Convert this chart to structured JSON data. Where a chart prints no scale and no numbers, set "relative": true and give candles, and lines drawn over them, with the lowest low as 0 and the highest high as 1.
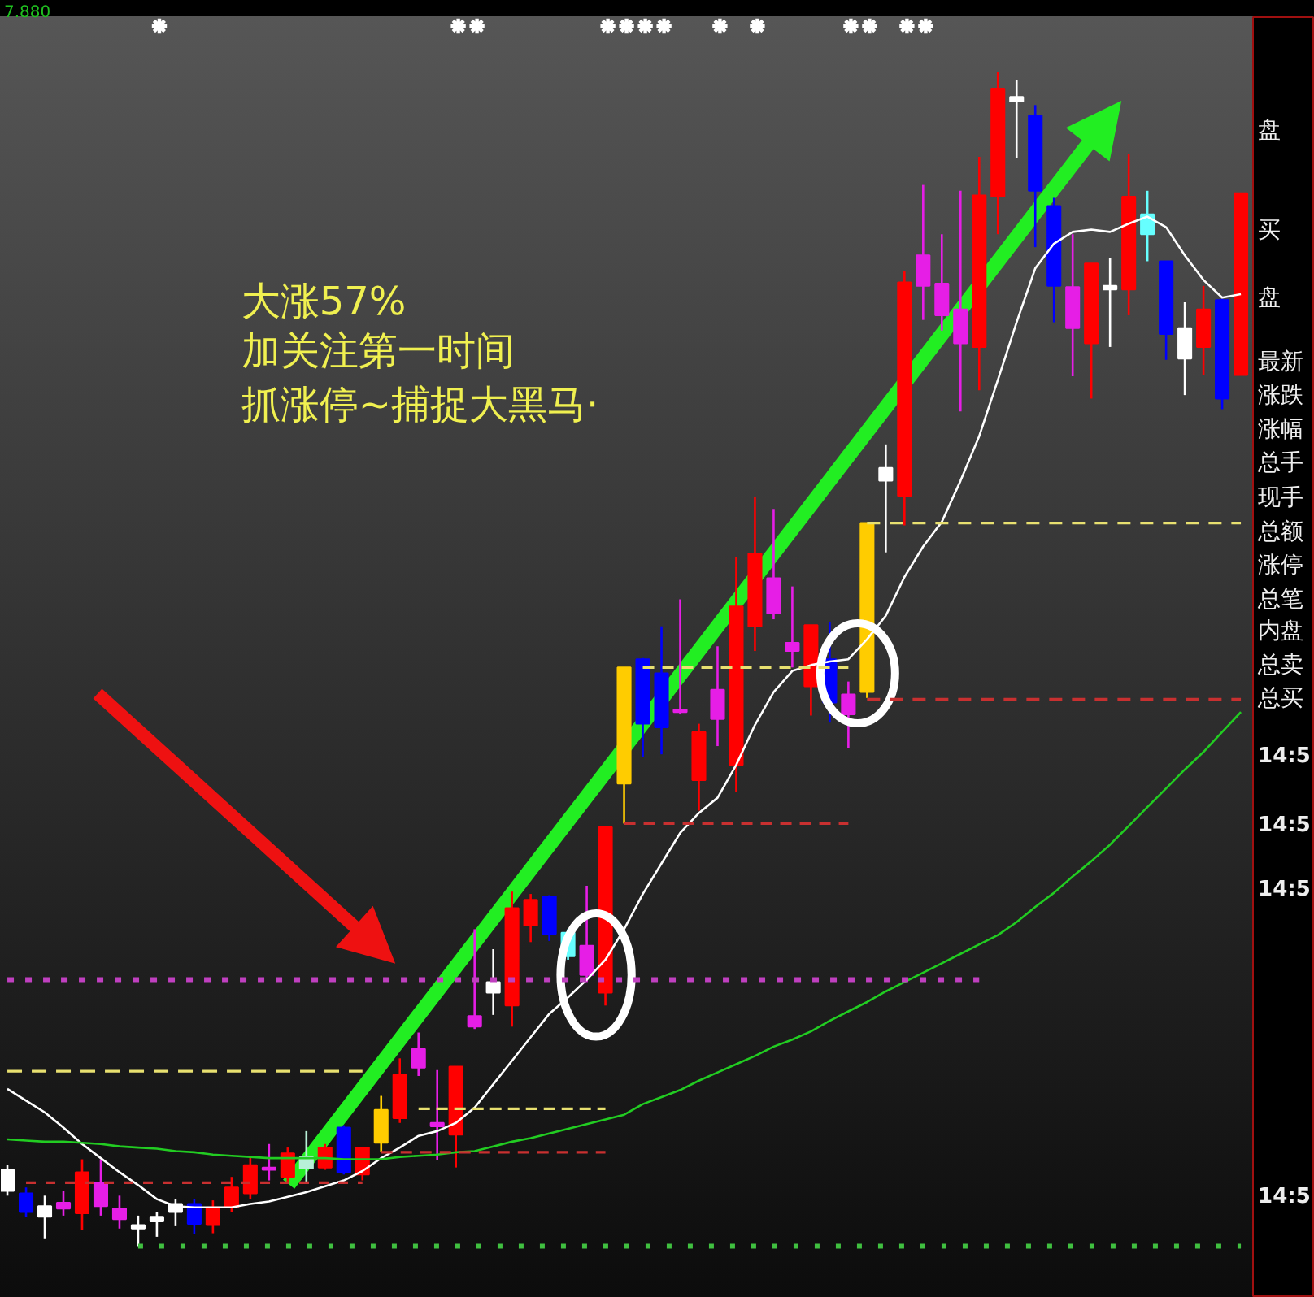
{
  "chart_data": {
    "type": "candlestick",
    "relative": true,
    "tick_labels": false,
    "categories": [
      null,
      null,
      null,
      null,
      null,
      null,
      null,
      null,
      null,
      null,
      null,
      null,
      null,
      null,
      null,
      null,
      null,
      null,
      null,
      null,
      null,
      null,
      null,
      null,
      null,
      null,
      null,
      null,
      null,
      null,
      null,
      null,
      null,
      null,
      null,
      null,
      null,
      null,
      null,
      null,
      null,
      null,
      null,
      null,
      null,
      null,
      null,
      null,
      null,
      null,
      null,
      null,
      null,
      null,
      null,
      null,
      null,
      null,
      null,
      null,
      null,
      null,
      null,
      null,
      null,
      null,
      null
    ],
    "ohlc": [
      [
        0.047,
        0.069,
        0.043,
        0.065
      ],
      [
        0.045,
        0.05,
        0.025,
        0.029
      ],
      [
        0.025,
        0.043,
        0.006,
        0.034
      ],
      [
        0.037,
        0.047,
        0.026,
        0.032
      ],
      [
        0.028,
        0.074,
        0.014,
        0.063
      ],
      [
        0.054,
        0.074,
        0.026,
        0.034
      ],
      [
        0.032,
        0.043,
        0.015,
        0.023
      ],
      [
        0.015,
        0.026,
        0,
        0.018
      ],
      [
        0.021,
        0.029,
        0.008,
        0.025
      ],
      [
        0.029,
        0.04,
        0.017,
        0.036
      ],
      [
        0.036,
        0.04,
        0.01,
        0.019
      ],
      [
        0.018,
        0.039,
        0.011,
        0.033
      ],
      [
        0.033,
        0.059,
        0.029,
        0.05
      ],
      [
        0.045,
        0.076,
        0.04,
        0.069
      ],
      [
        0.067,
        0.087,
        0.056,
        0.065
      ],
      [
        0.059,
        0.084,
        0.055,
        0.079
      ],
      [
        0.066,
        0.098,
        0.054,
        0.076
      ],
      [
        0.067,
        0.087,
        0.065,
        0.084
      ],
      [
        0.101,
        0.103,
        0.061,
        0.063
      ],
      [
        0.061,
        0.084,
        0.056,
        0.084
      ],
      [
        0.088,
        0.128,
        0.08,
        0.116
      ],
      [
        0.109,
        0.16,
        0.105,
        0.146
      ],
      [
        0.168,
        0.182,
        0.145,
        0.152
      ],
      [
        0.105,
        0.15,
        0.073,
        0.102
      ],
      [
        0.095,
        0.153,
        0.067,
        0.153
      ],
      [
        0.196,
        0.27,
        0.185,
        0.187
      ],
      [
        0.216,
        0.253,
        0.197,
        0.225
      ],
      [
        0.205,
        0.302,
        0.187,
        0.288
      ],
      [
        0.273,
        0.3,
        0.259,
        0.295
      ],
      [
        0.298,
        0.299,
        0.26,
        0.266
      ],
      [
        0.267,
        0.27,
        0.244,
        0.247
      ],
      [
        0.256,
        0.307,
        0.225,
        0.231
      ],
      [
        0.216,
        0.357,
        0.205,
        0.357
      ],
      [
        0.394,
        0.493,
        0.36,
        0.493
      ],
      [
        0.5,
        0.501,
        0.417,
        0.445
      ],
      [
        0.488,
        0.528,
        0.419,
        0.442
      ],
      [
        0.457,
        0.551,
        0.453,
        0.455
      ],
      [
        0.397,
        0.445,
        0.371,
        0.438
      ],
      [
        0.474,
        0.511,
        0.426,
        0.449
      ],
      [
        0.41,
        0.587,
        0.387,
        0.545
      ],
      [
        0.528,
        0.638,
        0.507,
        0.59
      ],
      [
        0.569,
        0.628,
        0.534,
        0.539
      ],
      [
        0.514,
        0.562,
        0.493,
        0.507
      ],
      [
        0.477,
        0.529,
        0.452,
        0.529
      ],
      [
        0.5,
        0.532,
        0.446,
        0.463
      ],
      [
        0.47,
        0.481,
        0.424,
        0.453
      ],
      [
        0.472,
        0.616,
        0.467,
        0.616
      ],
      [
        0.652,
        0.683,
        0.591,
        0.663
      ],
      [
        0.639,
        0.831,
        0.614,
        0.821
      ],
      [
        0.844,
        0.904,
        0.789,
        0.818
      ],
      [
        0.82,
        0.862,
        0.78,
        0.793
      ],
      [
        0.798,
        0.899,
        0.711,
        0.769
      ],
      [
        0.766,
        0.928,
        0.729,
        0.895
      ],
      [
        0.894,
        1,
        0.862,
        0.986
      ],
      [
        0.975,
        0.993,
        0.927,
        0.979
      ],
      [
        0.963,
        0.972,
        0.851,
        0.899
      ],
      [
        0.886,
        0.893,
        0.787,
        0.818
      ],
      [
        0.817,
        0.862,
        0.741,
        0.782
      ],
      [
        0.769,
        0.837,
        0.722,
        0.837
      ],
      [
        0.815,
        0.842,
        0.766,
        0.818
      ],
      [
        0.815,
        0.93,
        0.793,
        0.894
      ],
      [
        0.879,
        0.899,
        0.839,
        0.862
      ],
      [
        0.839,
        0.839,
        0.755,
        0.777
      ],
      [
        0.756,
        0.804,
        0.725,
        0.782
      ],
      [
        0.766,
        0.818,
        0.742,
        0.798
      ],
      [
        0.806,
        0.807,
        0.713,
        0.722
      ],
      [
        0.742,
        0.897,
        0.742,
        0.897
      ]
    ],
    "colors": [
      "#ffffff",
      "#0000ff",
      "#ffffff",
      "#e61ee6",
      "#ff0000",
      "#e61ee6",
      "#e61ee6",
      "#ffffff",
      "#ffffff",
      "#ffffff",
      "#0000ff",
      "#ff0000",
      "#ff0000",
      "#ff0000",
      "#e61ee6",
      "#ff0000",
      "#b8f0d8",
      "#ff0000",
      "#0000ff",
      "#ff0000",
      "#ffcc00",
      "#ff0000",
      "#e61ee6",
      "#e61ee6",
      "#ff0000",
      "#e61ee6",
      "#ffffff",
      "#ff0000",
      "#ff0000",
      "#0000ff",
      "#66ffff",
      "#e61ee6",
      "#ff0000",
      "#ffcc00",
      "#0000ff",
      "#0000ff",
      "#e61ee6",
      "#ff0000",
      "#e61ee6",
      "#ff0000",
      "#ff0000",
      "#e61ee6",
      "#e61ee6",
      "#ff0000",
      "#0000ff",
      "#e61ee6",
      "#ffcc00",
      "#ffffff",
      "#ff0000",
      "#e61ee6",
      "#e61ee6",
      "#e61ee6",
      "#ff0000",
      "#ff0000",
      "#ffffff",
      "#0000ff",
      "#0000ff",
      "#e61ee6",
      "#ff0000",
      "#ffffff",
      "#ff0000",
      "#66ffff",
      "#0000ff",
      "#ffffff",
      "#ff0000",
      "#0000ff",
      "#ff0000"
    ],
    "series": [
      {
        "type": "line",
        "color": "#ffffff",
        "values": [
          0.134,
          0.124,
          0.114,
          0.101,
          0.087,
          0.075,
          0.063,
          0.052,
          0.04,
          0.034,
          0.033,
          0.033,
          0.033,
          0.036,
          0.038,
          0.042,
          0.046,
          0.051,
          0.056,
          0.064,
          0.075,
          0.084,
          0.094,
          0.098,
          0.105,
          0.118,
          0.138,
          0.158,
          0.178,
          0.198,
          0.212,
          0.227,
          0.244,
          0.27,
          0.3,
          0.326,
          0.352,
          0.369,
          0.382,
          0.41,
          0.444,
          0.472,
          0.49,
          0.495,
          0.498,
          0.5,
          0.517,
          0.537,
          0.57,
          0.596,
          0.617,
          0.652,
          0.69,
          0.738,
          0.787,
          0.833,
          0.854,
          0.864,
          0.866,
          0.864,
          0.871,
          0.877,
          0.868,
          0.844,
          0.823,
          0.808,
          0.811
        ]
      },
      {
        "type": "line",
        "color": "#22cc22",
        "values": [
          0.091,
          0.09,
          0.089,
          0.089,
          0.088,
          0.087,
          0.085,
          0.084,
          0.083,
          0.081,
          0.08,
          0.078,
          0.077,
          0.076,
          0.075,
          0.075,
          0.075,
          0.075,
          0.074,
          0.074,
          0.074,
          0.076,
          0.077,
          0.078,
          0.08,
          0.081,
          0.085,
          0.089,
          0.092,
          0.096,
          0.1,
          0.104,
          0.108,
          0.112,
          0.121,
          0.127,
          0.133,
          0.141,
          0.148,
          0.155,
          0.162,
          0.17,
          0.176,
          0.183,
          0.192,
          0.2,
          0.208,
          0.217,
          0.225,
          0.233,
          0.241,
          0.249,
          0.257,
          0.265,
          0.276,
          0.289,
          0.301,
          0.315,
          0.328,
          0.342,
          0.358,
          0.374,
          0.39,
          0.406,
          0.421,
          0.438,
          0.455
        ]
      },
      {
        "type": "line",
        "color": "#e8e070",
        "line_style": "dashed",
        "values": [
          0.149,
          0.149,
          0.149,
          0.149,
          0.149,
          0.149,
          0.149,
          0.149,
          0.149,
          0.149,
          0.149,
          0.149,
          0.149,
          0.149,
          0.149,
          0.149,
          0.149,
          0.149,
          0.149,
          0.149,
          null,
          null,
          null,
          null,
          null,
          null,
          null,
          null,
          null,
          null,
          null,
          null,
          null,
          null,
          null,
          null,
          null,
          null,
          null,
          null,
          null,
          null,
          null,
          null,
          null,
          null,
          null,
          null,
          null,
          null,
          null,
          null,
          null,
          null,
          null,
          null,
          null,
          null,
          null,
          null,
          null,
          null,
          null,
          null,
          null,
          null,
          null
        ]
      },
      {
        "type": "line",
        "color": "#c83030",
        "line_style": "dashed",
        "values": [
          null,
          0.054,
          0.054,
          0.054,
          0.054,
          0.054,
          0.054,
          0.054,
          0.054,
          0.054,
          0.054,
          0.054,
          0.054,
          0.054,
          0.054,
          0.054,
          0.054,
          0.054,
          0.054,
          0.054,
          null,
          null,
          null,
          null,
          null,
          null,
          null,
          null,
          null,
          null,
          null,
          null,
          null,
          null,
          null,
          null,
          null,
          null,
          null,
          null,
          null,
          null,
          null,
          null,
          null,
          null,
          null,
          null,
          null,
          null,
          null,
          null,
          null,
          null,
          null,
          null,
          null,
          null,
          null,
          null,
          null,
          null,
          null,
          null,
          null,
          null,
          null
        ]
      },
      {
        "type": "line",
        "color": "#c040c0",
        "line_style": "dotted",
        "values": [
          0.227,
          0.227,
          0.227,
          0.227,
          0.227,
          0.227,
          0.227,
          0.227,
          0.227,
          0.227,
          0.227,
          0.227,
          0.227,
          0.227,
          0.227,
          0.227,
          0.227,
          0.227,
          0.227,
          0.227,
          0.227,
          0.227,
          0.227,
          0.227,
          0.227,
          0.227,
          0.227,
          0.227,
          0.227,
          0.227,
          0.227,
          0.227,
          0.227,
          0.227,
          0.227,
          0.227,
          0.227,
          0.227,
          0.227,
          0.227,
          0.227,
          0.227,
          0.227,
          0.227,
          0.227,
          0.227,
          0.227,
          0.227,
          0.227,
          0.227,
          0.227,
          0.227,
          0.227,
          null,
          null,
          null,
          null,
          null,
          null,
          null,
          null,
          null,
          null,
          null,
          null,
          null,
          null
        ]
      },
      {
        "type": "line",
        "color": "#40c040",
        "line_style": "dotted",
        "values": [
          null,
          null,
          null,
          null,
          null,
          null,
          null,
          0,
          0,
          0,
          0,
          0,
          0,
          0,
          0,
          0,
          0,
          0,
          0,
          0,
          0,
          0,
          0,
          0,
          0,
          0,
          0,
          0,
          0,
          0,
          0,
          0,
          0,
          0,
          0,
          0,
          0,
          0,
          0,
          0,
          0,
          0,
          0,
          0,
          0,
          0,
          0,
          0,
          0,
          0,
          0,
          0,
          0,
          0,
          0,
          0,
          0,
          0,
          0,
          0,
          0,
          0,
          0,
          0,
          0,
          0,
          0
        ]
      },
      {
        "type": "line",
        "color": "#e8e070",
        "line_style": "dashed",
        "values": [
          null,
          null,
          null,
          null,
          null,
          null,
          null,
          null,
          null,
          null,
          null,
          null,
          null,
          null,
          null,
          null,
          null,
          null,
          null,
          null,
          null,
          null,
          0.117,
          0.117,
          0.117,
          0.117,
          0.117,
          0.117,
          0.117,
          0.117,
          0.117,
          0.117,
          0.117,
          null,
          null,
          null,
          null,
          null,
          null,
          null,
          null,
          null,
          null,
          null,
          null,
          null,
          null,
          null,
          null,
          null,
          null,
          null,
          null,
          null,
          null,
          null,
          null,
          null,
          null,
          null,
          null,
          null,
          null,
          null,
          null,
          null,
          null
        ]
      },
      {
        "type": "line",
        "color": "#c83030",
        "line_style": "dashed",
        "values": [
          null,
          null,
          null,
          null,
          null,
          null,
          null,
          null,
          null,
          null,
          null,
          null,
          null,
          null,
          null,
          null,
          null,
          null,
          null,
          null,
          0.08,
          0.08,
          0.08,
          0.08,
          0.08,
          0.08,
          0.08,
          0.08,
          0.08,
          0.08,
          0.08,
          0.08,
          0.08,
          null,
          null,
          null,
          null,
          null,
          null,
          null,
          null,
          null,
          null,
          null,
          null,
          null,
          null,
          null,
          null,
          null,
          null,
          null,
          null,
          null,
          null,
          null,
          null,
          null,
          null,
          null,
          null,
          null,
          null,
          null,
          null,
          null,
          null
        ]
      },
      {
        "type": "line",
        "color": "#c83030",
        "line_style": "dashed",
        "values": [
          null,
          null,
          null,
          null,
          null,
          null,
          null,
          null,
          null,
          null,
          null,
          null,
          null,
          null,
          null,
          null,
          null,
          null,
          null,
          null,
          null,
          null,
          null,
          null,
          null,
          null,
          null,
          null,
          null,
          null,
          null,
          null,
          null,
          0.36,
          0.36,
          0.36,
          0.36,
          0.36,
          0.36,
          0.36,
          0.36,
          0.36,
          0.36,
          0.36,
          0.36,
          0.36,
          null,
          null,
          null,
          null,
          null,
          null,
          null,
          null,
          null,
          null,
          null,
          null,
          null,
          null,
          null,
          null,
          null,
          null,
          null,
          null,
          null
        ]
      },
      {
        "type": "line",
        "color": "#e8e070",
        "line_style": "dashed",
        "values": [
          null,
          null,
          null,
          null,
          null,
          null,
          null,
          null,
          null,
          null,
          null,
          null,
          null,
          null,
          null,
          null,
          null,
          null,
          null,
          null,
          null,
          null,
          null,
          null,
          null,
          null,
          null,
          null,
          null,
          null,
          null,
          null,
          null,
          null,
          0.493,
          0.493,
          0.493,
          0.493,
          0.493,
          0.493,
          0.493,
          0.493,
          0.493,
          0.493,
          0.493,
          0.493,
          null,
          null,
          null,
          null,
          null,
          null,
          null,
          null,
          null,
          null,
          null,
          null,
          null,
          null,
          null,
          null,
          null,
          null,
          null,
          null,
          null
        ]
      },
      {
        "type": "line",
        "color": "#c83030",
        "line_style": "dashed",
        "values": [
          null,
          null,
          null,
          null,
          null,
          null,
          null,
          null,
          null,
          null,
          null,
          null,
          null,
          null,
          null,
          null,
          null,
          null,
          null,
          null,
          null,
          null,
          null,
          null,
          null,
          null,
          null,
          null,
          null,
          null,
          null,
          null,
          null,
          null,
          null,
          null,
          null,
          null,
          null,
          null,
          null,
          null,
          null,
          null,
          null,
          null,
          0.466,
          0.466,
          0.466,
          0.466,
          0.466,
          0.466,
          0.466,
          0.466,
          0.466,
          0.466,
          0.466,
          0.466,
          0.466,
          0.466,
          0.466,
          0.466,
          0.466,
          0.466,
          0.466,
          0.466,
          0.466
        ]
      },
      {
        "type": "line",
        "color": "#e8e070",
        "line_style": "dashed",
        "values": [
          null,
          null,
          null,
          null,
          null,
          null,
          null,
          null,
          null,
          null,
          null,
          null,
          null,
          null,
          null,
          null,
          null,
          null,
          null,
          null,
          null,
          null,
          null,
          null,
          null,
          null,
          null,
          null,
          null,
          null,
          null,
          null,
          null,
          null,
          null,
          null,
          null,
          null,
          null,
          null,
          null,
          null,
          null,
          null,
          null,
          null,
          0.616,
          0.616,
          0.616,
          0.616,
          0.616,
          0.616,
          0.616,
          0.616,
          0.616,
          0.616,
          0.616,
          0.616,
          0.616,
          0.616,
          0.616,
          0.616,
          0.616,
          0.616,
          0.616,
          0.616,
          0.616
        ]
      }
    ],
    "annotations": [
      "大涨57%",
      "加关注第一时间",
      "抓涨停~捕捉大黑马·",
      "7.880",
      "盘",
      "买",
      "盘",
      "最新",
      "涨跌",
      "涨幅",
      "总手",
      "现手",
      "总额",
      "涨停",
      "总笔",
      "内盘",
      "总卖",
      "总买",
      "14:5",
      "14:5",
      "14:5",
      "14:5"
    ]
  }
}
